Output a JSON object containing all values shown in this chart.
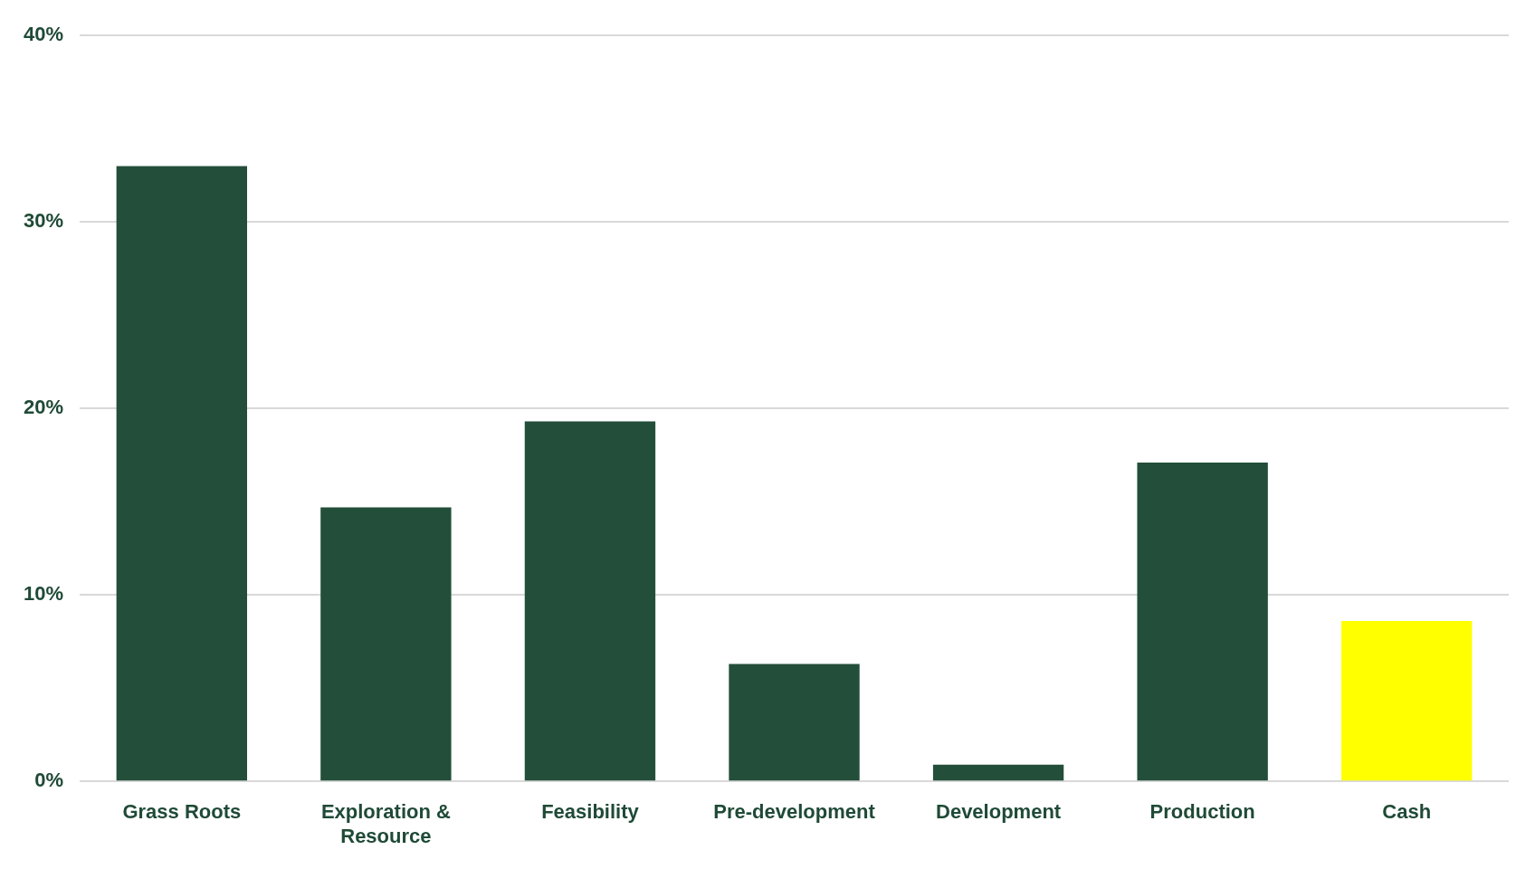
{
  "chart_data": {
    "type": "bar",
    "categories": [
      "Grass Roots",
      "Exploration & Resource",
      "Feasibility",
      "Pre-development",
      "Development",
      "Production",
      "Cash"
    ],
    "values": [
      33,
      14.7,
      19.3,
      6.3,
      0.9,
      17.1,
      8.6
    ],
    "colors": [
      "#234e3a",
      "#234e3a",
      "#234e3a",
      "#234e3a",
      "#234e3a",
      "#234e3a",
      "#ffff00"
    ],
    "ylim": [
      0,
      40
    ],
    "yticks": [
      {
        "value": 0,
        "label": "0%"
      },
      {
        "value": 10,
        "label": "10%"
      },
      {
        "value": 20,
        "label": "20%"
      },
      {
        "value": 30,
        "label": "30%"
      },
      {
        "value": 40,
        "label": "40%"
      }
    ],
    "grid": "y",
    "legend": false
  }
}
